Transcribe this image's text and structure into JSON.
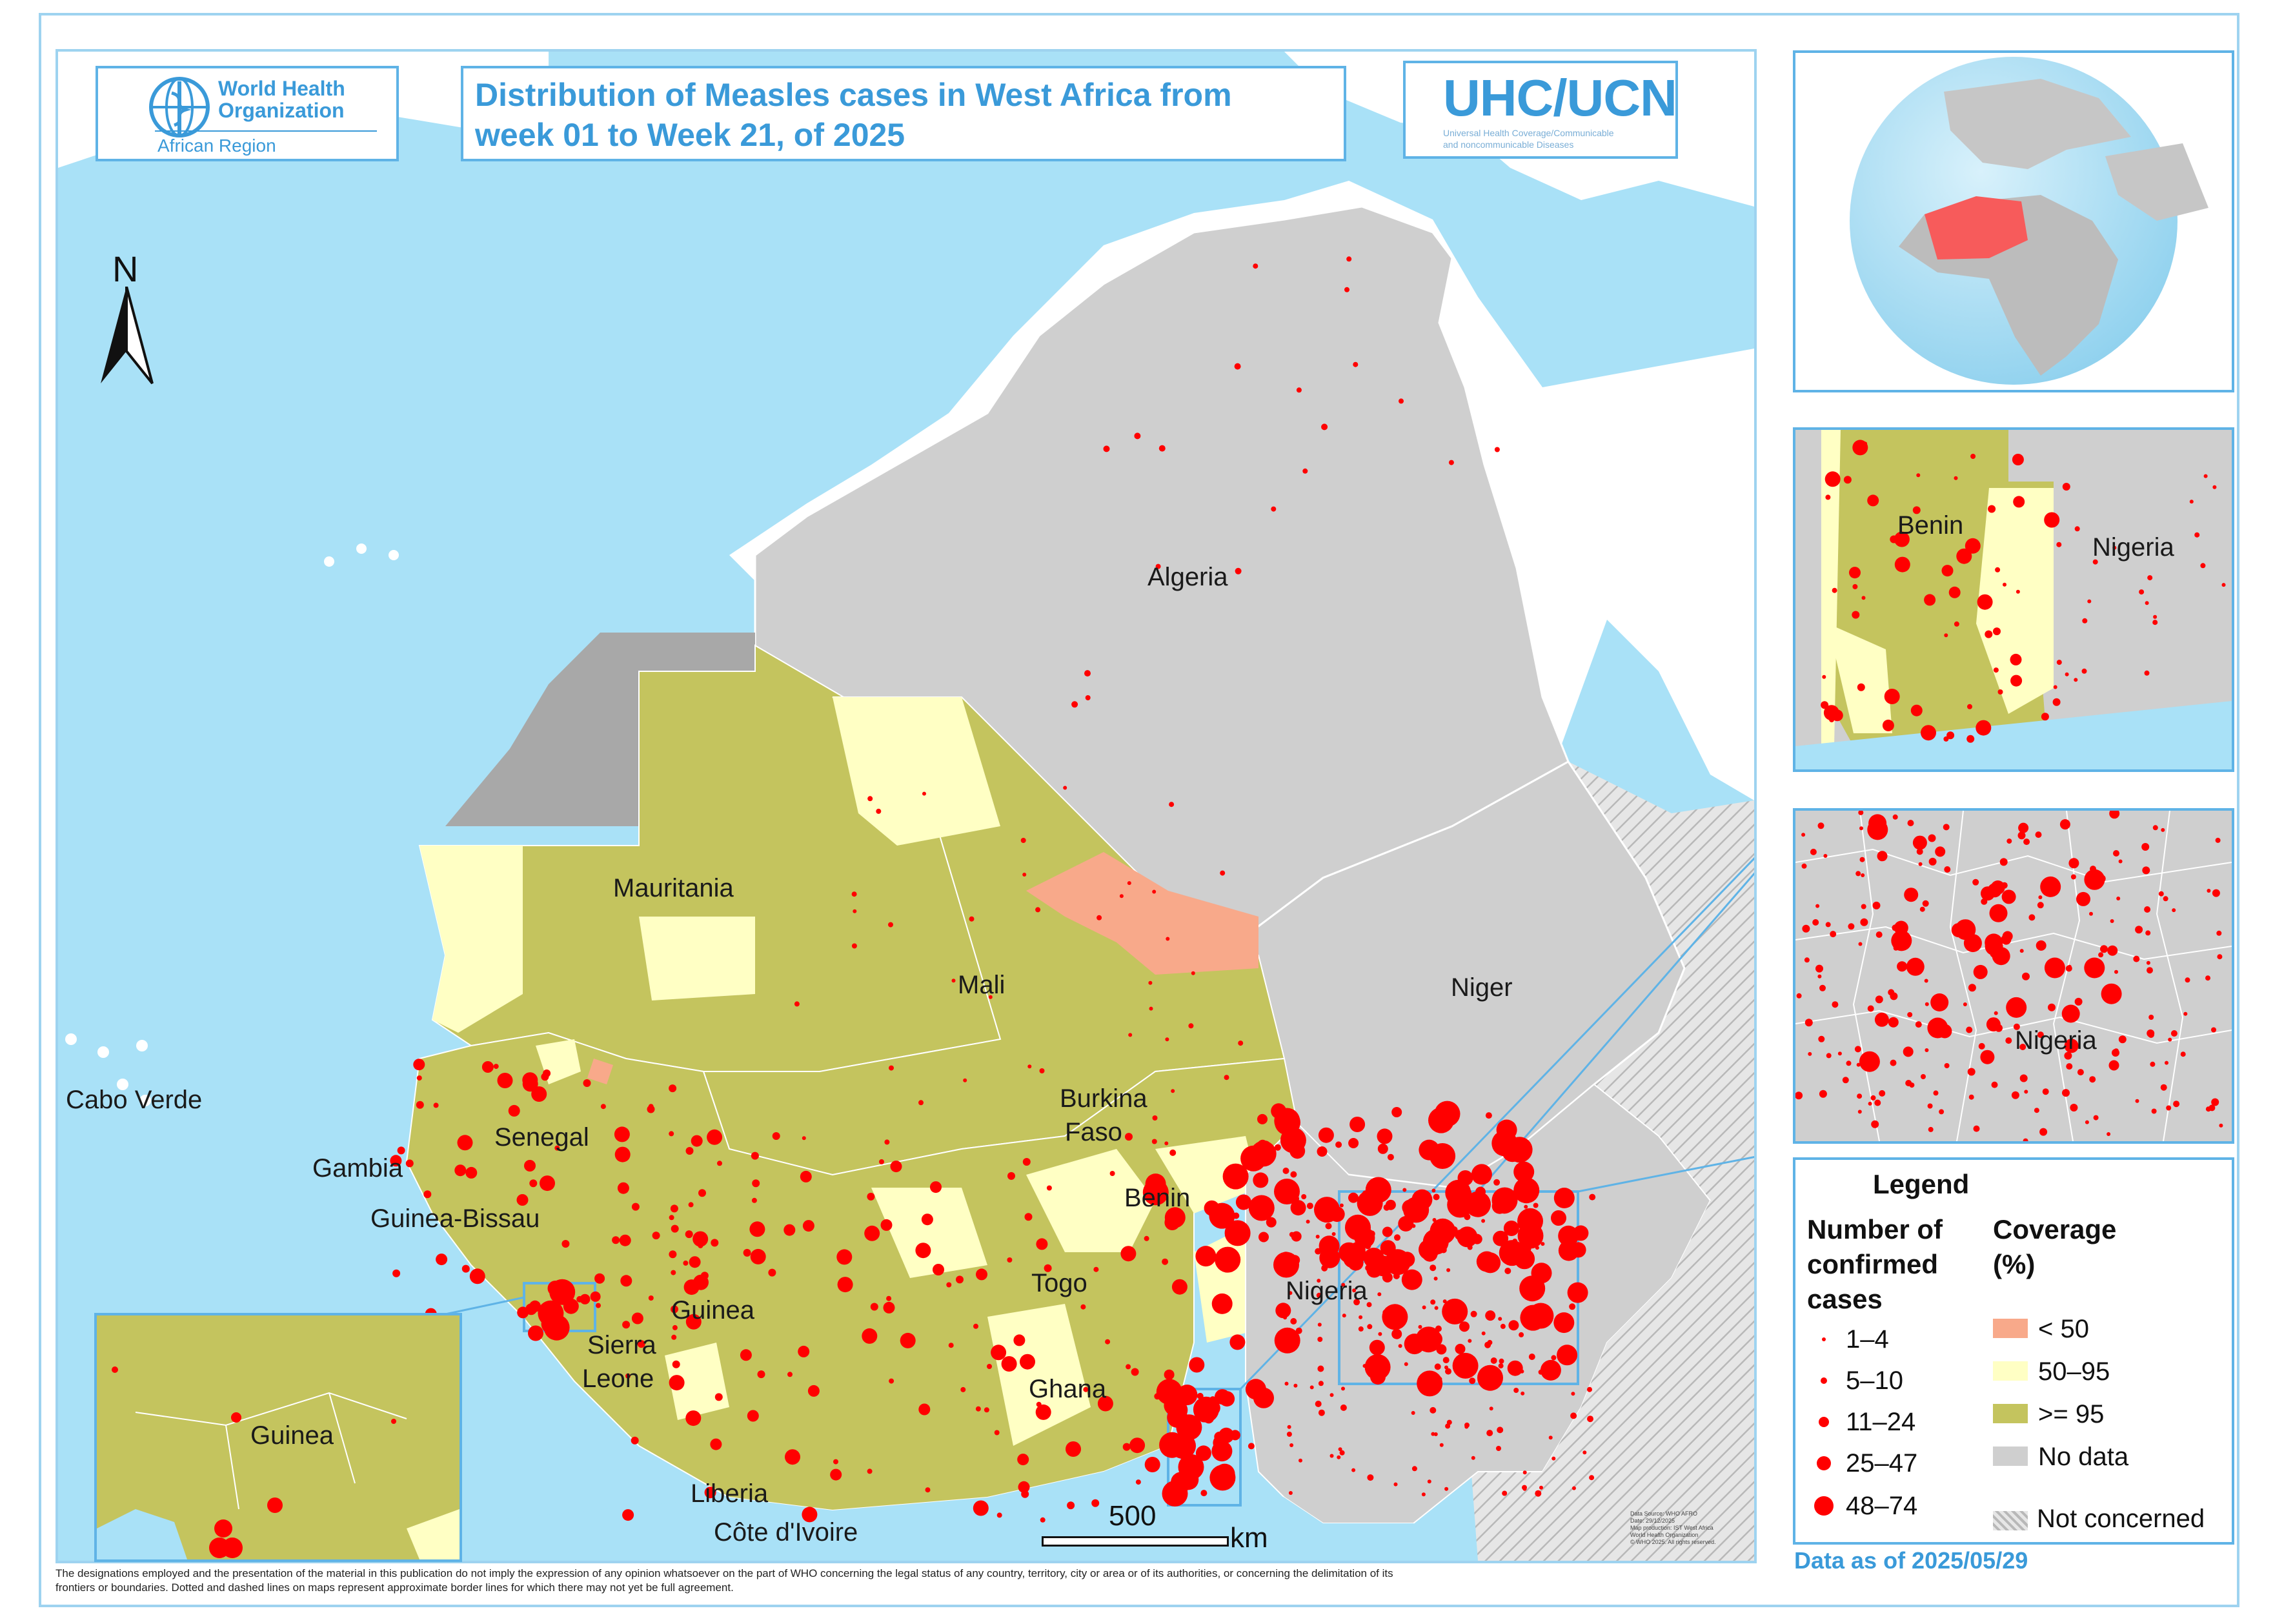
{
  "title": {
    "line1": "Distribution of Measles cases in West Africa from",
    "line2": "week 01 to Week 21, of 2025"
  },
  "who_logo": {
    "line1": "World Health",
    "line2": "Organization",
    "region": "African Region",
    "icon": "who-emblem-icon"
  },
  "uhc_logo": {
    "name": "UHC/UCN",
    "subtitle1": "Universal Health Coverage/Communicable",
    "subtitle2": "and noncommunicable Diseases"
  },
  "north_arrow": {
    "label": "N",
    "icon": "north-arrow-icon"
  },
  "countries": {
    "algeria": "Algeria",
    "mauritania": "Mauritania",
    "mali": "Mali",
    "niger": "Niger",
    "burkina": "Burkina",
    "faso": "Faso",
    "benin": "Benin",
    "nigeria": "Nigeria",
    "senegal": "Senegal",
    "gambia": "Gambia",
    "guinea_bissau": "Guinea-Bissau",
    "guinea": "Guinea",
    "sierra": "Sierra",
    "leone": "Leone",
    "liberia": "Liberia",
    "cote_divoire": "Côte d'Ivoire",
    "ghana": "Ghana",
    "togo": "Togo",
    "cabo_verde": "Cabo Verde"
  },
  "inset_labels": {
    "benin": "Benin",
    "nigeria_top": "Nigeria",
    "nigeria_zoom": "Nigeria",
    "guinea": "Guinea"
  },
  "scale_bar": {
    "value": "500",
    "unit": "km"
  },
  "legend": {
    "title": "Legend",
    "cases_heading": [
      "Number of",
      "confirmed",
      "cases"
    ],
    "coverage_heading": [
      "Coverage",
      "(%)"
    ],
    "case_classes": [
      "1–4",
      "5–10",
      "11–24",
      "25–47",
      "48–74"
    ],
    "coverage_classes": [
      {
        "label": "< 50",
        "color": "#f8a98a"
      },
      {
        "label": "50–95",
        "color": "#ffffc4"
      },
      {
        "label": ">= 95",
        "color": "#c4c45e"
      },
      {
        "label": "No data",
        "color": "#cfcfcf"
      }
    ],
    "not_concerned": "Not concerned"
  },
  "data_as_of": "Data as of 2025/05/29",
  "source_note": [
    "Data Source: WHO AFRO",
    "Date: 29/12/2025",
    "Map production: IST West Africa",
    "World Health Organization",
    "© WHO 2025. All rights reserved."
  ],
  "disclaimer": [
    "The designations employed and the presentation of the material in this publication do not imply the expression of any opinion whatsoever on the part of WHO concerning the legal status of any country, territory, city or area or of its authorities, or concerning the delimitation of its",
    "frontiers or boundaries. Dotted and dashed lines on maps represent approximate border lines for which there may not yet be full agreement."
  ],
  "colors": {
    "sea": "#a9e1f7",
    "land_outside": "#ffffff",
    "no_data": "#cfcfcf",
    "coverage_high": "#c4c45e",
    "coverage_mid": "#ffffc4",
    "coverage_low": "#f8a98a",
    "western_sahara": "#a8a8a8",
    "case_dot": "#ff0000",
    "accent": "#3a9ad9"
  }
}
